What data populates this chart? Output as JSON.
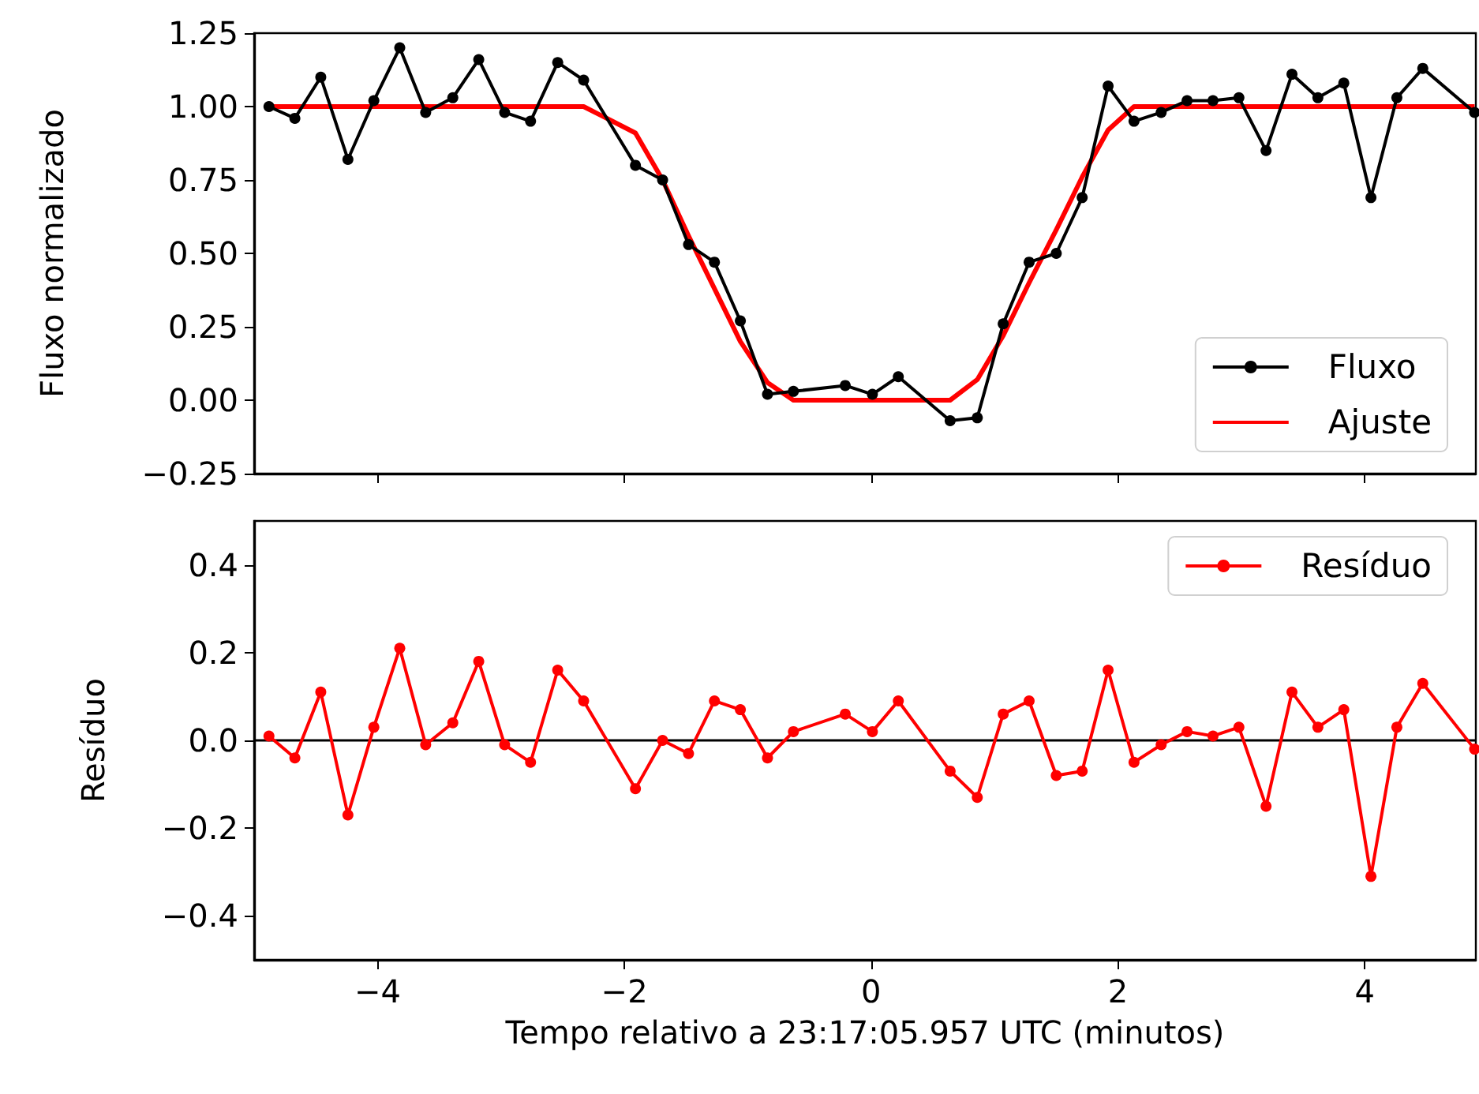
{
  "chart_data": [
    {
      "type": "line",
      "ylabel": "Fluxo normalizado",
      "x": [
        -4.88,
        -4.67,
        -4.46,
        -4.24,
        -4.03,
        -3.82,
        -3.61,
        -3.39,
        -3.18,
        -2.97,
        -2.76,
        -2.54,
        -2.33,
        -1.91,
        -1.69,
        -1.48,
        -1.27,
        -1.06,
        -0.84,
        -0.63,
        -0.21,
        0.01,
        0.22,
        0.64,
        0.86,
        1.07,
        1.28,
        1.5,
        1.71,
        1.92,
        2.13,
        2.35,
        2.56,
        2.77,
        2.98,
        3.2,
        3.41,
        3.62,
        3.83,
        4.05,
        4.26,
        4.47,
        4.89
      ],
      "series": [
        {
          "name": "Fluxo",
          "color": "#000000",
          "marker": "circle",
          "values": [
            1.0,
            0.96,
            1.1,
            0.82,
            1.02,
            1.2,
            0.98,
            1.03,
            1.16,
            0.98,
            0.95,
            1.15,
            1.09,
            0.8,
            0.75,
            0.53,
            0.47,
            0.27,
            0.02,
            0.03,
            0.05,
            0.02,
            0.08,
            -0.07,
            -0.06,
            0.26,
            0.47,
            0.5,
            0.69,
            1.07,
            0.95,
            0.98,
            1.02,
            1.02,
            1.03,
            0.85,
            1.11,
            1.03,
            1.08,
            0.69,
            1.03,
            1.13,
            0.98
          ]
        },
        {
          "name": "Ajuste",
          "color": "#ff0000",
          "marker": "none",
          "values": [
            1,
            1,
            1,
            1,
            1,
            1,
            1,
            1,
            1,
            1,
            1,
            1,
            1,
            0.91,
            0.75,
            0.56,
            0.38,
            0.2,
            0.06,
            0,
            0,
            0,
            0,
            0,
            0.07,
            0.22,
            0.4,
            0.58,
            0.76,
            0.92,
            1,
            1,
            1,
            1,
            1,
            1,
            1,
            1,
            1,
            1,
            1,
            1,
            1
          ]
        }
      ],
      "xlim": [
        -5,
        4.9
      ],
      "xticks": [
        {
          "value": -4,
          "label": null
        },
        {
          "value": -2,
          "label": null
        },
        {
          "value": 0,
          "label": null
        },
        {
          "value": 2,
          "label": null
        },
        {
          "value": 4,
          "label": null
        }
      ],
      "ylim": [
        -0.25,
        1.25
      ],
      "yticks": [
        {
          "value": -0.25,
          "label": "−0.25"
        },
        {
          "value": 0,
          "label": "0.00"
        },
        0.25,
        {
          "value": 0.5,
          "label": "0.50"
        },
        0.75,
        {
          "value": 1,
          "label": "1.00"
        },
        1.25
      ],
      "tick_labels": "y",
      "legend": "bottom right",
      "grid": false
    },
    {
      "type": "line",
      "xlabel": "Tempo relativo a 23:17:05.957 UTC (minutos)",
      "ylabel": "Resíduo",
      "x": [
        -4.88,
        -4.67,
        -4.46,
        -4.24,
        -4.03,
        -3.82,
        -3.61,
        -3.39,
        -3.18,
        -2.97,
        -2.76,
        -2.54,
        -2.33,
        -1.91,
        -1.69,
        -1.48,
        -1.27,
        -1.06,
        -0.84,
        -0.63,
        -0.21,
        0.01,
        0.22,
        0.64,
        0.86,
        1.07,
        1.28,
        1.5,
        1.71,
        1.92,
        2.13,
        2.35,
        2.56,
        2.77,
        2.98,
        3.2,
        3.41,
        3.62,
        3.83,
        4.05,
        4.26,
        4.47,
        4.89
      ],
      "series": [
        {
          "name": "Resíduo",
          "color": "#ff0000",
          "marker": "circle",
          "values": [
            0.01,
            -0.04,
            0.11,
            -0.17,
            0.03,
            0.21,
            -0.01,
            0.04,
            0.18,
            -0.01,
            -0.05,
            0.16,
            0.09,
            -0.11,
            0.0,
            -0.03,
            0.09,
            0.07,
            -0.04,
            0.02,
            0.06,
            0.02,
            0.09,
            -0.07,
            -0.13,
            0.06,
            0.09,
            -0.08,
            -0.07,
            0.16,
            -0.05,
            -0.01,
            0.02,
            0.01,
            0.03,
            -0.15,
            0.11,
            0.03,
            0.07,
            -0.31,
            0.03,
            0.13,
            -0.02
          ]
        }
      ],
      "ref_lines": [
        {
          "axis": "y",
          "value": 0,
          "color": "#000000"
        }
      ],
      "xlim": [
        -5,
        4.9
      ],
      "xticks": [
        {
          "value": -4,
          "label": "−4"
        },
        {
          "value": -2,
          "label": "−2"
        },
        0,
        2,
        4
      ],
      "ylim": [
        -0.5,
        0.5
      ],
      "yticks": [
        {
          "value": -0.4,
          "label": "−0.4"
        },
        {
          "value": -0.2,
          "label": "−0.2"
        },
        {
          "value": 0,
          "label": "0.0"
        },
        0.2,
        0.4
      ],
      "legend": "top right",
      "grid": false
    }
  ]
}
